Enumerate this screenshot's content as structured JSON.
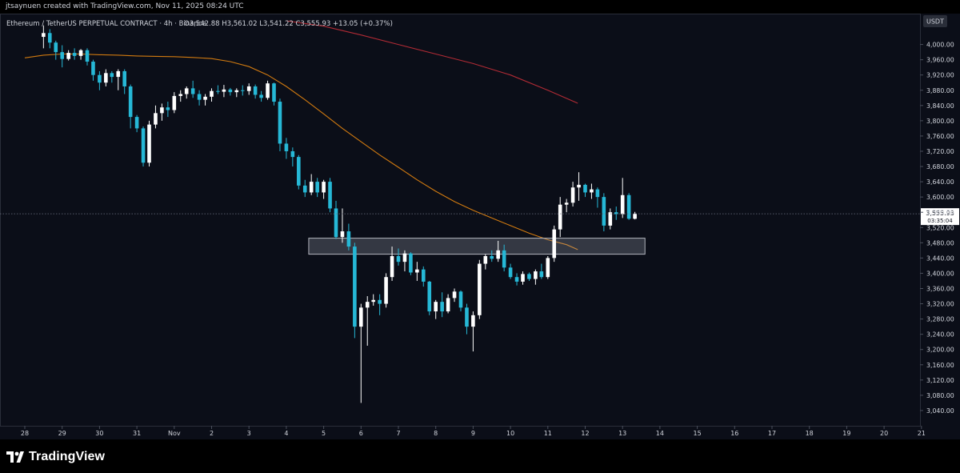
{
  "attribution": "jtsaynuen created with TradingView.com, Nov 11, 2025 08:24 UTC",
  "footer": {
    "logo_text": "TradingView",
    "logo_icon": "tradingview-logo-icon"
  },
  "colors": {
    "up": "#ffffff",
    "down": "#26b8d6",
    "ma_short": "#d17a10",
    "ma_long": "#b22b35",
    "background": "#0b0e18",
    "text": "#d1d4dc"
  },
  "chart_data": {
    "type": "candlestick",
    "symbol_line": "Ethereum / TetherUS PERPETUAL CONTRACT · 4h · Binance",
    "ohlc_line": "O3,542.88  H3,561.02  L3,541.22  C3,555.93  +13.05 (+0.37%)",
    "currency": "USDT",
    "ylim": [
      3000,
      4060
    ],
    "y_ticks": [
      "4,000.00",
      "3,960.00",
      "3,920.00",
      "3,880.00",
      "3,840.00",
      "3,800.00",
      "3,760.00",
      "3,720.00",
      "3,680.00",
      "3,640.00",
      "3,600.00",
      "3,560.00",
      "3,520.00",
      "3,480.00",
      "3,440.00",
      "3,400.00",
      "3,360.00",
      "3,320.00",
      "3,280.00",
      "3,240.00",
      "3,200.00",
      "3,160.00",
      "3,120.00",
      "3,080.00",
      "3,040.00"
    ],
    "x_ticks": [
      "28",
      "29",
      "30",
      "31",
      "Nov",
      "2",
      "3",
      "4",
      "5",
      "6",
      "7",
      "8",
      "9",
      "10",
      "11",
      "12",
      "13",
      "14",
      "15",
      "16",
      "17",
      "18",
      "19",
      "20",
      "21"
    ],
    "x_start_day": 28,
    "current_price": {
      "label": "3,555.93",
      "countdown": "03:35:04",
      "value": 3555.93
    },
    "zone": {
      "t_start": 7.6,
      "t_end": 16.6,
      "low": 3450,
      "high": 3492
    },
    "ma_short": [
      [
        0,
        3965
      ],
      [
        0.5,
        3972
      ],
      [
        1,
        3975
      ],
      [
        1.5,
        3975
      ],
      [
        2,
        3973
      ],
      [
        2.5,
        3972
      ],
      [
        3,
        3970
      ],
      [
        3.5,
        3969
      ],
      [
        4,
        3968
      ],
      [
        4.5,
        3966
      ],
      [
        5,
        3963
      ],
      [
        5.5,
        3955
      ],
      [
        6,
        3942
      ],
      [
        6.5,
        3920
      ],
      [
        7,
        3890
      ],
      [
        7.5,
        3855
      ],
      [
        8,
        3818
      ],
      [
        8.5,
        3780
      ],
      [
        9,
        3745
      ],
      [
        9.5,
        3710
      ],
      [
        10,
        3678
      ],
      [
        10.5,
        3645
      ],
      [
        11,
        3615
      ],
      [
        11.5,
        3588
      ],
      [
        12,
        3565
      ],
      [
        12.5,
        3545
      ],
      [
        13,
        3525
      ],
      [
        13.5,
        3505
      ],
      [
        14,
        3488
      ],
      [
        14.5,
        3475
      ],
      [
        14.8,
        3462
      ]
    ],
    "ma_long": [
      [
        7,
        4062
      ],
      [
        8,
        4048
      ],
      [
        9,
        4025
      ],
      [
        10,
        4000
      ],
      [
        11,
        3975
      ],
      [
        12,
        3950
      ],
      [
        13,
        3920
      ],
      [
        14,
        3880
      ],
      [
        14.8,
        3846
      ]
    ],
    "candles": [
      [
        0.5,
        4020,
        4050,
        3990,
        4030
      ],
      [
        0.67,
        4030,
        4040,
        3990,
        4005
      ],
      [
        0.83,
        4005,
        4010,
        3960,
        3980
      ],
      [
        1.0,
        3980,
        3998,
        3940,
        3962
      ],
      [
        1.17,
        3962,
        3985,
        3958,
        3978
      ],
      [
        1.33,
        3978,
        3990,
        3960,
        3970
      ],
      [
        1.5,
        3970,
        3988,
        3960,
        3985
      ],
      [
        1.67,
        3985,
        3990,
        3945,
        3955
      ],
      [
        1.83,
        3955,
        3960,
        3905,
        3920
      ],
      [
        2.0,
        3920,
        3930,
        3880,
        3900
      ],
      [
        2.17,
        3900,
        3935,
        3890,
        3925
      ],
      [
        2.33,
        3925,
        3930,
        3900,
        3915
      ],
      [
        2.5,
        3915,
        3935,
        3880,
        3930
      ],
      [
        2.67,
        3930,
        3935,
        3870,
        3890
      ],
      [
        2.83,
        3890,
        3895,
        3780,
        3810
      ],
      [
        3.0,
        3810,
        3815,
        3770,
        3780
      ],
      [
        3.17,
        3780,
        3785,
        3680,
        3690
      ],
      [
        3.33,
        3690,
        3800,
        3680,
        3790
      ],
      [
        3.5,
        3790,
        3840,
        3780,
        3820
      ],
      [
        3.67,
        3820,
        3845,
        3800,
        3835
      ],
      [
        3.83,
        3835,
        3850,
        3810,
        3828
      ],
      [
        4.0,
        3828,
        3875,
        3820,
        3865
      ],
      [
        4.17,
        3865,
        3880,
        3850,
        3870
      ],
      [
        4.33,
        3870,
        3890,
        3858,
        3885
      ],
      [
        4.5,
        3885,
        3905,
        3860,
        3870
      ],
      [
        4.67,
        3870,
        3880,
        3840,
        3855
      ],
      [
        4.83,
        3855,
        3870,
        3840,
        3863
      ],
      [
        5.0,
        3863,
        3885,
        3850,
        3878
      ],
      [
        5.17,
        3878,
        3893,
        3870,
        3876
      ],
      [
        5.33,
        3876,
        3894,
        3862,
        3882
      ],
      [
        5.5,
        3882,
        3886,
        3866,
        3875
      ],
      [
        5.67,
        3875,
        3885,
        3862,
        3880
      ],
      [
        5.83,
        3880,
        3893,
        3866,
        3878
      ],
      [
        6.0,
        3878,
        3898,
        3868,
        3890
      ],
      [
        6.17,
        3890,
        3895,
        3858,
        3868
      ],
      [
        6.33,
        3868,
        3878,
        3850,
        3860
      ],
      [
        6.5,
        3860,
        3905,
        3855,
        3898
      ],
      [
        6.67,
        3898,
        3900,
        3840,
        3850
      ],
      [
        6.83,
        3850,
        3858,
        3720,
        3740
      ],
      [
        7.0,
        3740,
        3755,
        3700,
        3720
      ],
      [
        7.17,
        3720,
        3730,
        3680,
        3705
      ],
      [
        7.33,
        3705,
        3710,
        3620,
        3630
      ],
      [
        7.5,
        3630,
        3645,
        3600,
        3612
      ],
      [
        7.67,
        3612,
        3660,
        3605,
        3640
      ],
      [
        7.83,
        3640,
        3650,
        3600,
        3612
      ],
      [
        8.0,
        3612,
        3645,
        3595,
        3640
      ],
      [
        8.17,
        3640,
        3650,
        3560,
        3570
      ],
      [
        8.33,
        3570,
        3590,
        3490,
        3495
      ],
      [
        8.5,
        3495,
        3570,
        3480,
        3510
      ],
      [
        8.67,
        3510,
        3530,
        3460,
        3470
      ],
      [
        8.83,
        3470,
        3480,
        3230,
        3260
      ],
      [
        9.0,
        3260,
        3320,
        3060,
        3310
      ],
      [
        9.17,
        3310,
        3340,
        3210,
        3325
      ],
      [
        9.33,
        3325,
        3345,
        3315,
        3330
      ],
      [
        9.5,
        3330,
        3345,
        3290,
        3320
      ],
      [
        9.67,
        3320,
        3400,
        3310,
        3390
      ],
      [
        9.83,
        3390,
        3470,
        3380,
        3445
      ],
      [
        10.0,
        3445,
        3465,
        3420,
        3430
      ],
      [
        10.17,
        3430,
        3460,
        3405,
        3452
      ],
      [
        10.33,
        3452,
        3455,
        3395,
        3402
      ],
      [
        10.5,
        3402,
        3430,
        3380,
        3410
      ],
      [
        10.67,
        3410,
        3418,
        3365,
        3378
      ],
      [
        10.83,
        3378,
        3380,
        3290,
        3300
      ],
      [
        11.0,
        3300,
        3330,
        3280,
        3325
      ],
      [
        11.17,
        3325,
        3350,
        3285,
        3300
      ],
      [
        11.33,
        3300,
        3345,
        3295,
        3335
      ],
      [
        11.5,
        3335,
        3360,
        3325,
        3352
      ],
      [
        11.67,
        3352,
        3355,
        3300,
        3310
      ],
      [
        11.83,
        3310,
        3320,
        3240,
        3260
      ],
      [
        12.0,
        3260,
        3300,
        3195,
        3290
      ],
      [
        12.17,
        3290,
        3435,
        3280,
        3425
      ],
      [
        12.33,
        3425,
        3450,
        3410,
        3445
      ],
      [
        12.5,
        3445,
        3460,
        3430,
        3438
      ],
      [
        12.67,
        3438,
        3485,
        3430,
        3460
      ],
      [
        12.83,
        3460,
        3475,
        3405,
        3415
      ],
      [
        13.0,
        3415,
        3425,
        3385,
        3390
      ],
      [
        13.17,
        3390,
        3400,
        3368,
        3378
      ],
      [
        13.33,
        3378,
        3405,
        3370,
        3398
      ],
      [
        13.5,
        3398,
        3402,
        3380,
        3385
      ],
      [
        13.67,
        3385,
        3410,
        3370,
        3405
      ],
      [
        13.83,
        3405,
        3425,
        3385,
        3390
      ],
      [
        14.0,
        3390,
        3445,
        3385,
        3440
      ],
      [
        14.17,
        3440,
        3525,
        3430,
        3515
      ],
      [
        14.33,
        3515,
        3600,
        3495,
        3580
      ],
      [
        14.5,
        3580,
        3595,
        3560,
        3585
      ],
      [
        14.67,
        3585,
        3640,
        3575,
        3625
      ],
      [
        14.83,
        3625,
        3665,
        3590,
        3632
      ],
      [
        15.0,
        3632,
        3635,
        3600,
        3612
      ],
      [
        15.17,
        3612,
        3635,
        3595,
        3620
      ],
      [
        15.33,
        3620,
        3625,
        3572,
        3600
      ],
      [
        15.5,
        3600,
        3610,
        3510,
        3525
      ],
      [
        15.67,
        3525,
        3570,
        3515,
        3560
      ],
      [
        15.83,
        3560,
        3575,
        3540,
        3555
      ],
      [
        16.0,
        3555,
        3650,
        3545,
        3605
      ],
      [
        16.17,
        3605,
        3610,
        3540,
        3543
      ],
      [
        16.33,
        3542.88,
        3561.02,
        3541.22,
        3555.93
      ]
    ]
  }
}
